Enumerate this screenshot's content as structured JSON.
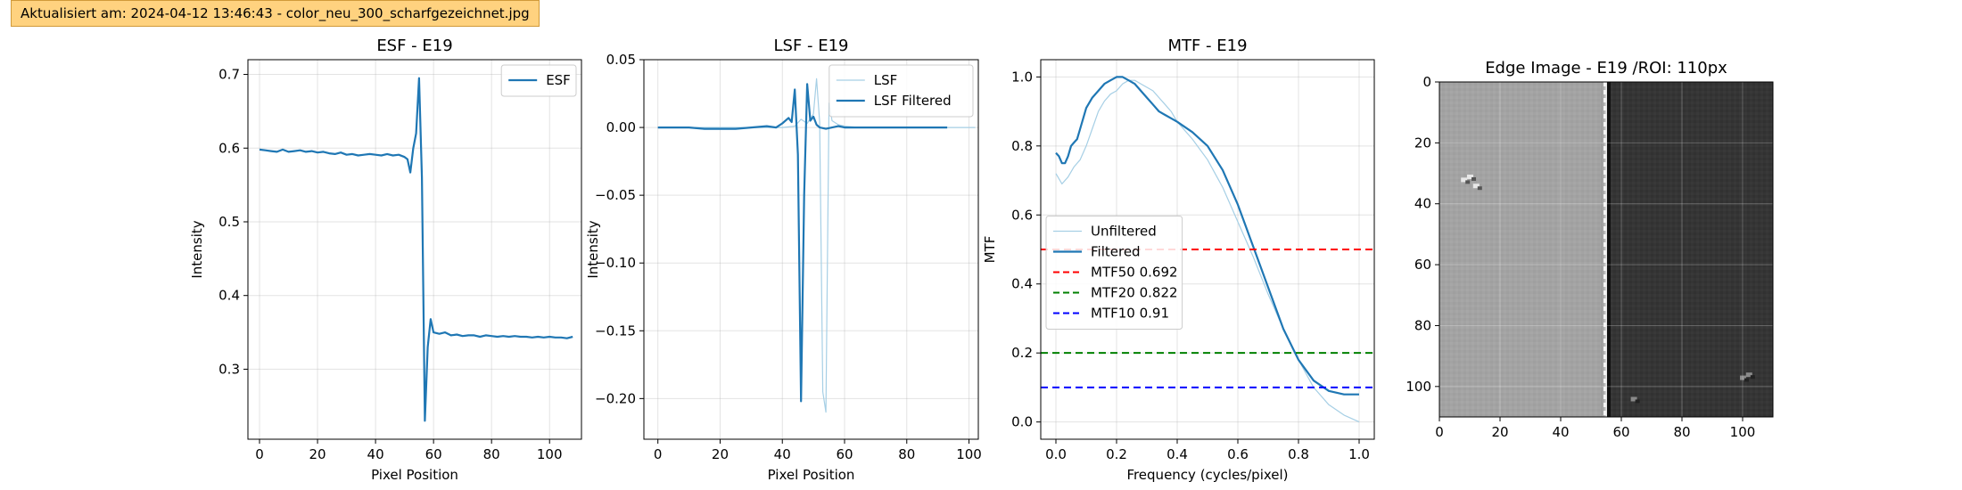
{
  "banner": {
    "text": "Aktualisiert am: 2024-04-12 13:46:43 - color_neu_300_scharfgezeichnet.jpg"
  },
  "colors": {
    "series_primary": "#1f77b4",
    "series_light": "#a6cfe5",
    "mtf50": "#ff0000",
    "mtf20": "#008000",
    "mtf10": "#0000ff",
    "banner_bg": "#ffd27f"
  },
  "chart_data": [
    {
      "type": "line",
      "title": "ESF - E19",
      "xlabel": "Pixel Position",
      "ylabel": "Intensity",
      "xlim": [
        -4,
        111
      ],
      "ylim": [
        0.205,
        0.72
      ],
      "xticks": [
        0,
        20,
        40,
        60,
        80,
        100
      ],
      "yticks": [
        0.3,
        0.4,
        0.5,
        0.6,
        0.7
      ],
      "ytick_labels": [
        "0.3",
        "0.4",
        "0.5",
        "0.6",
        "0.7"
      ],
      "grid": true,
      "legend_position": "upper right",
      "series": [
        {
          "name": "ESF",
          "color": "#1f77b4",
          "x": [
            0,
            2,
            4,
            6,
            8,
            10,
            12,
            14,
            16,
            18,
            20,
            22,
            24,
            26,
            28,
            30,
            32,
            34,
            36,
            38,
            40,
            42,
            44,
            46,
            48,
            50,
            51,
            52,
            53,
            54,
            55,
            56,
            57,
            58,
            59,
            60,
            62,
            64,
            66,
            68,
            70,
            72,
            74,
            76,
            78,
            80,
            82,
            84,
            86,
            88,
            90,
            92,
            94,
            96,
            98,
            100,
            102,
            104,
            106,
            108
          ],
          "y": [
            0.598,
            0.597,
            0.596,
            0.595,
            0.598,
            0.595,
            0.596,
            0.597,
            0.595,
            0.596,
            0.594,
            0.595,
            0.593,
            0.592,
            0.594,
            0.591,
            0.592,
            0.59,
            0.591,
            0.592,
            0.591,
            0.59,
            0.592,
            0.59,
            0.591,
            0.588,
            0.585,
            0.567,
            0.6,
            0.62,
            0.695,
            0.56,
            0.23,
            0.33,
            0.368,
            0.35,
            0.348,
            0.35,
            0.346,
            0.347,
            0.345,
            0.346,
            0.346,
            0.344,
            0.346,
            0.345,
            0.344,
            0.345,
            0.344,
            0.345,
            0.344,
            0.344,
            0.343,
            0.344,
            0.343,
            0.344,
            0.343,
            0.343,
            0.342,
            0.344
          ]
        }
      ]
    },
    {
      "type": "line",
      "title": "LSF - E19",
      "xlabel": "Pixel Position",
      "ylabel": "Intensity",
      "xlim": [
        -4.5,
        103
      ],
      "ylim": [
        -0.23,
        0.05
      ],
      "xticks": [
        0,
        20,
        40,
        60,
        80,
        100
      ],
      "yticks": [
        -0.2,
        -0.15,
        -0.1,
        -0.05,
        0.0,
        0.05
      ],
      "ytick_labels": [
        "−0.20",
        "−0.15",
        "−0.10",
        "−0.05",
        "0.00",
        "0.05"
      ],
      "grid": true,
      "legend_position": "upper right",
      "series": [
        {
          "name": "LSF",
          "color": "#a6cfe5",
          "x": [
            0,
            5,
            10,
            15,
            20,
            25,
            30,
            35,
            40,
            44,
            46,
            48,
            50,
            51,
            52,
            53,
            54,
            55,
            56,
            58,
            60,
            65,
            70,
            75,
            80,
            85,
            90,
            95,
            100,
            102
          ],
          "y": [
            0.0,
            0.0,
            0.0,
            0.0,
            0.0,
            0.0,
            0.0,
            0.0,
            0.0,
            0.001,
            0.006,
            0.003,
            0.01,
            0.036,
            0.004,
            -0.195,
            -0.21,
            0.018,
            0.005,
            0.002,
            0.001,
            0.0,
            0.0,
            0.0,
            0.0,
            0.0,
            0.0,
            0.0,
            0.0,
            0.0
          ]
        },
        {
          "name": "LSF Filtered",
          "color": "#1f77b4",
          "x": [
            0,
            5,
            10,
            15,
            20,
            25,
            30,
            35,
            38,
            40,
            42,
            43,
            44,
            45,
            46,
            47,
            48,
            49,
            50,
            51,
            52,
            54,
            56,
            58,
            60,
            65,
            70,
            75,
            80,
            85,
            90,
            93
          ],
          "y": [
            0.0,
            0.0,
            0.0,
            -0.001,
            -0.001,
            -0.001,
            0.0,
            0.001,
            0.0,
            0.003,
            0.007,
            0.004,
            0.028,
            -0.02,
            -0.202,
            -0.05,
            0.032,
            0.005,
            0.008,
            0.002,
            0.0,
            -0.001,
            0.0,
            0.001,
            0.0,
            0.0,
            0.0,
            0.0,
            0.0,
            0.0,
            0.0,
            0.0
          ]
        }
      ]
    },
    {
      "type": "line",
      "title": "MTF - E19",
      "xlabel": "Frequency (cycles/pixel)",
      "ylabel": "MTF",
      "xlim": [
        -0.05,
        1.05
      ],
      "ylim": [
        -0.05,
        1.05
      ],
      "xticks": [
        0.0,
        0.2,
        0.4,
        0.6,
        0.8,
        1.0
      ],
      "xtick_labels": [
        "0.0",
        "0.2",
        "0.4",
        "0.6",
        "0.8",
        "1.0"
      ],
      "yticks": [
        0.0,
        0.2,
        0.4,
        0.6,
        0.8,
        1.0
      ],
      "ytick_labels": [
        "0.0",
        "0.2",
        "0.4",
        "0.6",
        "0.8",
        "1.0"
      ],
      "grid": true,
      "legend_position": "center left",
      "series": [
        {
          "name": "Unfiltered",
          "color": "#a6cfe5",
          "x": [
            0.0,
            0.02,
            0.04,
            0.06,
            0.08,
            0.1,
            0.12,
            0.14,
            0.16,
            0.18,
            0.2,
            0.22,
            0.24,
            0.26,
            0.28,
            0.3,
            0.32,
            0.34,
            0.36,
            0.38,
            0.4,
            0.45,
            0.5,
            0.55,
            0.6,
            0.65,
            0.7,
            0.75,
            0.8,
            0.85,
            0.9,
            0.95,
            1.0
          ],
          "y": [
            0.72,
            0.69,
            0.71,
            0.74,
            0.76,
            0.8,
            0.85,
            0.9,
            0.93,
            0.95,
            0.96,
            0.98,
            0.99,
            0.99,
            0.98,
            0.97,
            0.96,
            0.94,
            0.92,
            0.9,
            0.87,
            0.82,
            0.76,
            0.68,
            0.58,
            0.48,
            0.37,
            0.27,
            0.18,
            0.1,
            0.05,
            0.02,
            0.0
          ]
        },
        {
          "name": "Filtered",
          "color": "#1f77b4",
          "x": [
            0.0,
            0.01,
            0.02,
            0.03,
            0.04,
            0.05,
            0.06,
            0.07,
            0.08,
            0.1,
            0.12,
            0.14,
            0.16,
            0.18,
            0.2,
            0.22,
            0.24,
            0.26,
            0.28,
            0.3,
            0.32,
            0.34,
            0.36,
            0.38,
            0.4,
            0.45,
            0.5,
            0.55,
            0.6,
            0.65,
            0.7,
            0.75,
            0.8,
            0.85,
            0.9,
            0.95,
            1.0
          ],
          "y": [
            0.78,
            0.77,
            0.75,
            0.75,
            0.77,
            0.8,
            0.81,
            0.82,
            0.85,
            0.91,
            0.94,
            0.96,
            0.98,
            0.99,
            1.0,
            1.0,
            0.99,
            0.98,
            0.96,
            0.94,
            0.92,
            0.9,
            0.89,
            0.88,
            0.87,
            0.84,
            0.8,
            0.73,
            0.63,
            0.51,
            0.39,
            0.27,
            0.18,
            0.12,
            0.09,
            0.08,
            0.08
          ]
        }
      ],
      "hlines": [
        {
          "label": "MTF50 0.692",
          "y": 0.5,
          "color": "#ff0000"
        },
        {
          "label": "MTF20 0.822",
          "y": 0.2,
          "color": "#008000"
        },
        {
          "label": "MTF10 0.91",
          "y": 0.1,
          "color": "#0000ff"
        }
      ]
    },
    {
      "type": "image",
      "title": "Edge Image - E19 /ROI: 110px",
      "xlim": [
        0,
        110
      ],
      "ylim": [
        110,
        0
      ],
      "xticks": [
        0,
        20,
        40,
        60,
        80,
        100
      ],
      "yticks": [
        0,
        20,
        40,
        60,
        80,
        100
      ],
      "edge_column": 55,
      "grid": true
    }
  ]
}
